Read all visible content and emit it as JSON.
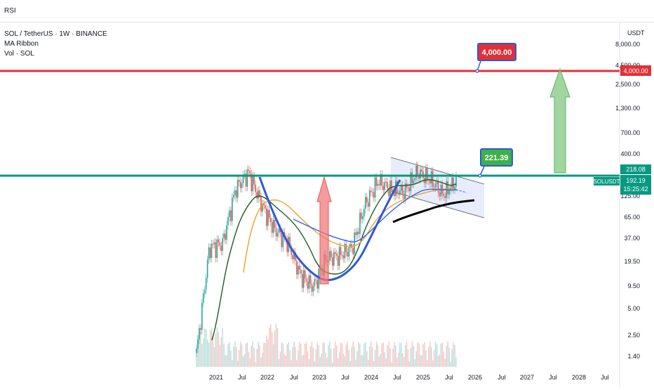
{
  "indicator_tab": "RSI",
  "legend": {
    "symbol": "SOL / TetherUS · 1W · BINANCE",
    "ma": "MA Ribbon",
    "vol": "Vol · SOL"
  },
  "colors": {
    "target": "#e03138",
    "support": "#089981",
    "label_green": "#3db248",
    "candle_up": "#26a69a",
    "candle_down": "#ef5350",
    "cup": "#2e59d9",
    "ma_dark": "#1b5e20",
    "ma_orange": "#f0a020",
    "ma_blue": "#2962ff"
  },
  "chart_data": {
    "type": "candlestick",
    "currency": "USDT",
    "y_ticks": [
      "8,000.00",
      "4,500.00",
      "2,500.00",
      "1,300.00",
      "700.00",
      "400.00",
      "218.08",
      "125.00",
      "65.00",
      "37.00",
      "19.50",
      "9.50",
      "5.00",
      "2.50",
      "1.40"
    ],
    "x_ticks": [
      "2021",
      "Jul",
      "2022",
      "Jul",
      "2023",
      "Jul",
      "2024",
      "Jul",
      "2025",
      "Jul",
      "2026",
      "Jul",
      "2027",
      "Jul",
      "2028",
      "Jul"
    ],
    "target_level": "4,000.00",
    "target_label": "4,000.00",
    "resistance_label": "221.39",
    "price_label": "SOLUSDT",
    "price_value": "192.19",
    "countdown": "15:25:42",
    "last_price_tag": "218.08",
    "series_approx": {
      "x": [
        "2021-01",
        "2021-04",
        "2021-07",
        "2021-09",
        "2021-11",
        "2022-02",
        "2022-05",
        "2022-08",
        "2022-11",
        "2023-01",
        "2023-04",
        "2023-07",
        "2023-10",
        "2024-01",
        "2024-03",
        "2024-06",
        "2024-09",
        "2024-11",
        "2025-01",
        "2025-04",
        "2025-07"
      ],
      "close": [
        1.6,
        30,
        33,
        150,
        240,
        100,
        50,
        35,
        14,
        10,
        22,
        24,
        30,
        100,
        190,
        150,
        140,
        240,
        200,
        130,
        190
      ]
    }
  }
}
